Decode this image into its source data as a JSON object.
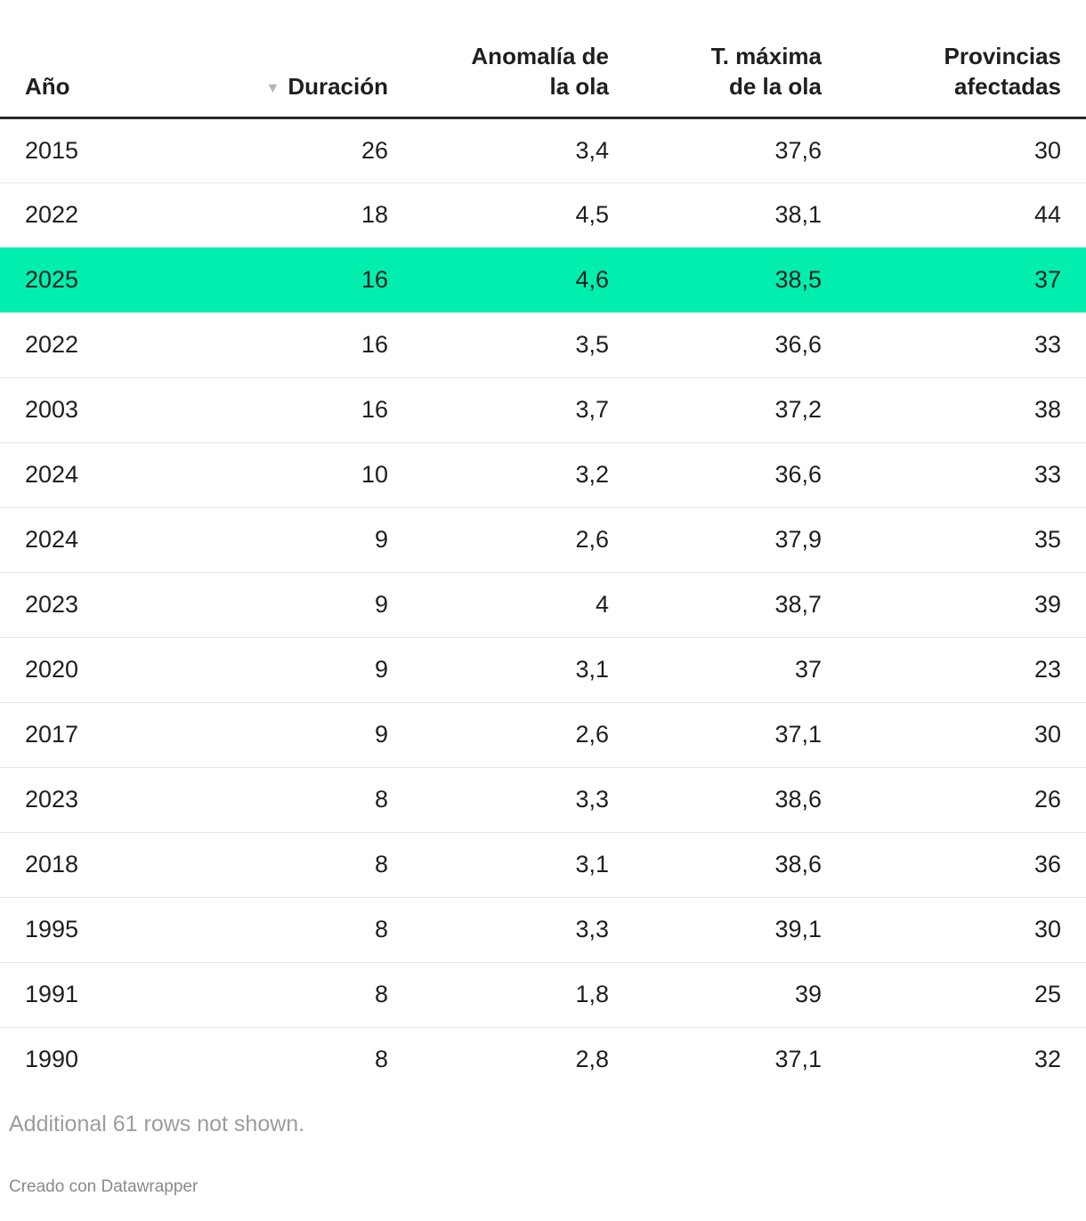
{
  "chart_data": {
    "type": "table",
    "title": "",
    "columns": [
      "Año",
      "Duración",
      "Anomalía de la ola",
      "T. máxima de la ola",
      "Provincias afectadas"
    ],
    "sort": {
      "column": "Duración",
      "direction": "desc"
    },
    "rows": [
      [
        "2015",
        "26",
        "3,4",
        "37,6",
        "30"
      ],
      [
        "2022",
        "18",
        "4,5",
        "38,1",
        "44"
      ],
      [
        "2025",
        "16",
        "4,6",
        "38,5",
        "37"
      ],
      [
        "2022",
        "16",
        "3,5",
        "36,6",
        "33"
      ],
      [
        "2003",
        "16",
        "3,7",
        "37,2",
        "38"
      ],
      [
        "2024",
        "10",
        "3,2",
        "36,6",
        "33"
      ],
      [
        "2024",
        "9",
        "2,6",
        "37,9",
        "35"
      ],
      [
        "2023",
        "9",
        "4",
        "38,7",
        "39"
      ],
      [
        "2020",
        "9",
        "3,1",
        "37",
        "23"
      ],
      [
        "2017",
        "9",
        "2,6",
        "37,1",
        "30"
      ],
      [
        "2023",
        "8",
        "3,3",
        "38,6",
        "26"
      ],
      [
        "2018",
        "8",
        "3,1",
        "38,6",
        "36"
      ],
      [
        "1995",
        "8",
        "3,3",
        "39,1",
        "30"
      ],
      [
        "1991",
        "8",
        "1,8",
        "39",
        "25"
      ],
      [
        "1990",
        "8",
        "2,8",
        "37,1",
        "32"
      ]
    ],
    "highlighted_row_index": 2,
    "highlighted_row": [
      "2025",
      "16",
      "4,6",
      "38,5",
      "37"
    ]
  },
  "header": {
    "col_ano": "Año",
    "col_duracion": "Duración",
    "col_anomalia": "Anomalía de\nla ola",
    "col_tmaxima": "T. máxima\nde la ola",
    "col_provincias": "Provincias\nafectadas",
    "sort_icon_glyph": "▼"
  },
  "footer": {
    "note": "Additional 61 rows not shown.",
    "attribution": "Creado con Datawrapper"
  },
  "colors": {
    "highlight": "#00eeae",
    "header_border": "#2b2b2b",
    "row_divider": "#e7e7e7",
    "text": "#1f1f1f",
    "muted_note": "#9c9c9c",
    "muted_attribution": "#8a8a8a",
    "sort_icon": "#b5b5b5"
  }
}
